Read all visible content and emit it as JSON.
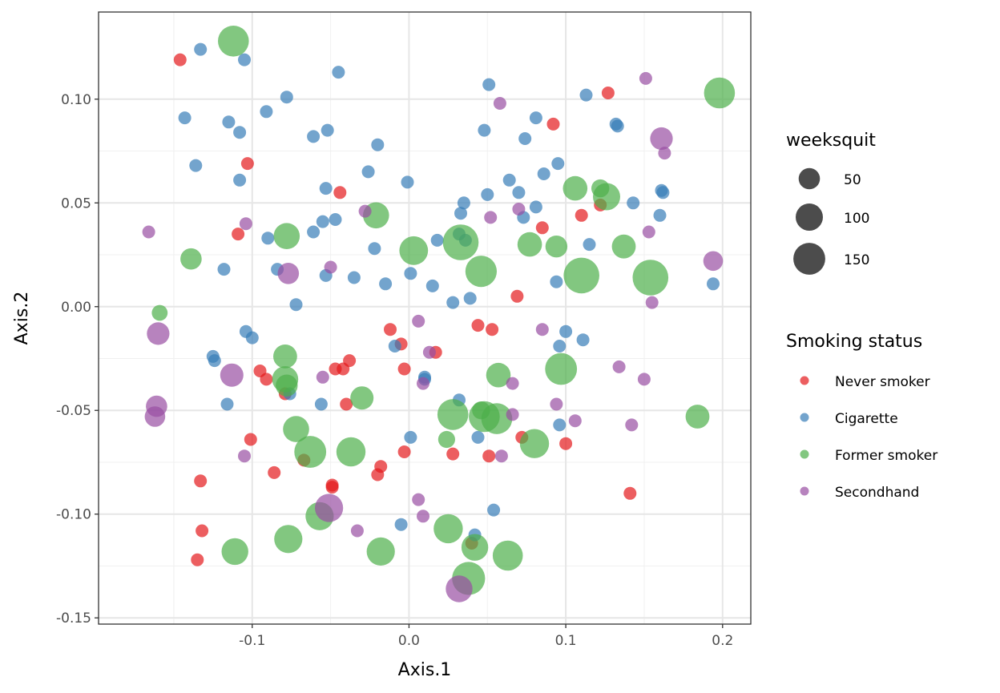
{
  "chart_data": {
    "type": "scatter",
    "title": "",
    "xlabel": "Axis.1",
    "ylabel": "Axis.2",
    "xlim": [
      -0.198,
      0.218
    ],
    "ylim": [
      -0.153,
      0.142
    ],
    "x_ticks": [
      {
        "value": -0.1,
        "label": "-0.1"
      },
      {
        "value": 0.0,
        "label": "0.0"
      },
      {
        "value": 0.1,
        "label": "0.1"
      },
      {
        "value": 0.2,
        "label": "0.2"
      }
    ],
    "y_ticks": [
      {
        "value": 0.1,
        "label": "0.10"
      },
      {
        "value": 0.05,
        "label": "0.05"
      },
      {
        "value": 0.0,
        "label": "0.00"
      },
      {
        "value": -0.05,
        "label": "-0.05"
      },
      {
        "value": -0.1,
        "label": "-0.10"
      },
      {
        "value": -0.15,
        "label": "-0.15"
      }
    ],
    "grid": true,
    "legend_position": "right",
    "size_legend": {
      "title": "weeksquit",
      "items": [
        {
          "value": 50,
          "label": "50"
        },
        {
          "value": 100,
          "label": "100"
        },
        {
          "value": 150,
          "label": "150"
        }
      ]
    },
    "color_legend": {
      "title": "Smoking status",
      "items": [
        {
          "key": "never",
          "label": "Never smoker",
          "color": "#e41a1c"
        },
        {
          "key": "cig",
          "label": "Cigarette",
          "color": "#377eb8"
        },
        {
          "key": "former",
          "label": "Former smoker",
          "color": "#4daf4a"
        },
        {
          "key": "second",
          "label": "Secondhand",
          "color": "#984ea3"
        }
      ]
    },
    "series": [
      {
        "name": "Never smoker",
        "points": [
          [
            -0.146,
            0.119,
            0
          ],
          [
            -0.103,
            0.069,
            0
          ],
          [
            -0.109,
            0.035,
            0
          ],
          [
            -0.044,
            0.055,
            0
          ],
          [
            0.127,
            0.103,
            0
          ],
          [
            0.092,
            0.088,
            0
          ],
          [
            0.11,
            0.044,
            0
          ],
          [
            0.122,
            0.049,
            0
          ],
          [
            0.085,
            0.038,
            0
          ],
          [
            0.069,
            0.005,
            0
          ],
          [
            -0.012,
            -0.011,
            0
          ],
          [
            -0.005,
            -0.018,
            0
          ],
          [
            0.017,
            -0.022,
            0
          ],
          [
            0.044,
            -0.009,
            0
          ],
          [
            0.053,
            -0.011,
            0
          ],
          [
            -0.095,
            -0.031,
            0
          ],
          [
            -0.091,
            -0.035,
            0
          ],
          [
            -0.047,
            -0.03,
            0
          ],
          [
            -0.042,
            -0.03,
            0
          ],
          [
            -0.038,
            -0.026,
            0
          ],
          [
            -0.079,
            -0.042,
            0
          ],
          [
            -0.04,
            -0.047,
            0
          ],
          [
            -0.003,
            -0.03,
            0
          ],
          [
            -0.101,
            -0.064,
            0
          ],
          [
            -0.086,
            -0.08,
            0
          ],
          [
            -0.067,
            -0.074,
            0
          ],
          [
            -0.049,
            -0.087,
            0
          ],
          [
            -0.049,
            -0.086,
            0
          ],
          [
            -0.018,
            -0.077,
            0
          ],
          [
            -0.02,
            -0.081,
            0
          ],
          [
            -0.003,
            -0.07,
            0
          ],
          [
            -0.133,
            -0.084,
            0
          ],
          [
            -0.132,
            -0.108,
            0
          ],
          [
            -0.135,
            -0.122,
            0
          ],
          [
            0.028,
            -0.071,
            0
          ],
          [
            0.051,
            -0.072,
            0
          ],
          [
            0.072,
            -0.063,
            0
          ],
          [
            0.1,
            -0.066,
            0
          ],
          [
            0.141,
            -0.09,
            0
          ],
          [
            0.04,
            -0.114,
            0
          ]
        ]
      },
      {
        "name": "Cigarette",
        "points": [
          [
            -0.133,
            0.124,
            0
          ],
          [
            -0.105,
            0.119,
            0
          ],
          [
            -0.045,
            0.113,
            0
          ],
          [
            -0.143,
            0.091,
            0
          ],
          [
            -0.115,
            0.089,
            0
          ],
          [
            -0.108,
            0.084,
            0
          ],
          [
            -0.091,
            0.094,
            0
          ],
          [
            -0.078,
            0.101,
            0
          ],
          [
            -0.052,
            0.085,
            0
          ],
          [
            -0.061,
            0.082,
            0
          ],
          [
            -0.02,
            0.078,
            0
          ],
          [
            -0.136,
            0.068,
            0
          ],
          [
            -0.108,
            0.061,
            0
          ],
          [
            -0.026,
            0.065,
            0
          ],
          [
            -0.001,
            0.06,
            0
          ],
          [
            -0.053,
            0.057,
            0
          ],
          [
            -0.055,
            0.041,
            0
          ],
          [
            -0.047,
            0.042,
            0
          ],
          [
            -0.061,
            0.036,
            0
          ],
          [
            -0.09,
            0.033,
            0
          ],
          [
            -0.084,
            0.018,
            0
          ],
          [
            -0.053,
            0.015,
            0
          ],
          [
            -0.035,
            0.014,
            0
          ],
          [
            -0.022,
            0.028,
            0
          ],
          [
            -0.015,
            0.011,
            0
          ],
          [
            0.001,
            0.016,
            0
          ],
          [
            0.018,
            0.032,
            0
          ],
          [
            0.015,
            0.01,
            0
          ],
          [
            -0.118,
            0.018,
            0
          ],
          [
            -0.072,
            0.001,
            0
          ],
          [
            0.051,
            0.107,
            0
          ],
          [
            0.048,
            0.085,
            0
          ],
          [
            0.081,
            0.091,
            0
          ],
          [
            0.074,
            0.081,
            0
          ],
          [
            0.113,
            0.102,
            0
          ],
          [
            0.132,
            0.088,
            0
          ],
          [
            0.133,
            0.087,
            0
          ],
          [
            0.095,
            0.069,
            0
          ],
          [
            0.086,
            0.064,
            0
          ],
          [
            0.064,
            0.061,
            0
          ],
          [
            0.05,
            0.054,
            0
          ],
          [
            0.07,
            0.055,
            0
          ],
          [
            0.035,
            0.05,
            0
          ],
          [
            0.033,
            0.045,
            0
          ],
          [
            0.073,
            0.043,
            0
          ],
          [
            0.081,
            0.048,
            0
          ],
          [
            0.032,
            0.035,
            0
          ],
          [
            0.036,
            0.032,
            0
          ],
          [
            0.115,
            0.03,
            0
          ],
          [
            0.143,
            0.05,
            0
          ],
          [
            0.161,
            0.056,
            0
          ],
          [
            0.162,
            0.055,
            0
          ],
          [
            0.16,
            0.044,
            0
          ],
          [
            0.194,
            0.011,
            0
          ],
          [
            0.094,
            0.012,
            0
          ],
          [
            0.028,
            0.002,
            0
          ],
          [
            0.039,
            0.004,
            0
          ],
          [
            -0.104,
            -0.012,
            0
          ],
          [
            -0.1,
            -0.015,
            0
          ],
          [
            -0.125,
            -0.024,
            0
          ],
          [
            -0.124,
            -0.026,
            0
          ],
          [
            -0.116,
            -0.047,
            0
          ],
          [
            -0.076,
            -0.042,
            0
          ],
          [
            -0.056,
            -0.047,
            0
          ],
          [
            -0.009,
            -0.019,
            0
          ],
          [
            0.01,
            -0.034,
            0
          ],
          [
            0.01,
            -0.035,
            0
          ],
          [
            0.032,
            -0.045,
            0
          ],
          [
            0.1,
            -0.012,
            0
          ],
          [
            0.111,
            -0.016,
            0
          ],
          [
            0.096,
            -0.019,
            0
          ],
          [
            0.096,
            -0.057,
            0
          ],
          [
            0.044,
            -0.063,
            0
          ],
          [
            0.001,
            -0.063,
            0
          ],
          [
            0.054,
            -0.098,
            0
          ],
          [
            -0.005,
            -0.105,
            0
          ],
          [
            0.042,
            -0.11,
            0
          ]
        ]
      },
      {
        "name": "Former smoker",
        "points": [
          [
            -0.112,
            0.128,
            140
          ],
          [
            0.198,
            0.103,
            140
          ],
          [
            -0.021,
            0.044,
            90
          ],
          [
            -0.078,
            0.034,
            90
          ],
          [
            0.003,
            0.027,
            115
          ],
          [
            0.033,
            0.031,
            200
          ],
          [
            0.046,
            0.017,
            145
          ],
          [
            0.077,
            0.03,
            75
          ],
          [
            0.094,
            0.029,
            55
          ],
          [
            0.106,
            0.057,
            75
          ],
          [
            0.126,
            0.053,
            100
          ],
          [
            0.122,
            0.057,
            30
          ],
          [
            0.137,
            0.029,
            70
          ],
          [
            0.11,
            0.015,
            200
          ],
          [
            0.154,
            0.014,
            200
          ],
          [
            -0.139,
            0.023,
            50
          ],
          [
            -0.159,
            -0.003,
            20
          ],
          [
            -0.079,
            -0.024,
            70
          ],
          [
            -0.078,
            -0.038,
            55
          ],
          [
            -0.079,
            -0.035,
            90
          ],
          [
            -0.072,
            -0.059,
            90
          ],
          [
            -0.03,
            -0.044,
            65
          ],
          [
            -0.063,
            -0.07,
            150
          ],
          [
            -0.037,
            -0.07,
            120
          ],
          [
            0.028,
            -0.052,
            140
          ],
          [
            0.048,
            -0.053,
            140
          ],
          [
            0.056,
            -0.054,
            140
          ],
          [
            0.057,
            -0.033,
            75
          ],
          [
            0.097,
            -0.03,
            150
          ],
          [
            0.08,
            -0.066,
            120
          ],
          [
            0.046,
            -0.05,
            30
          ],
          [
            0.184,
            -0.053,
            70
          ],
          [
            0.024,
            -0.064,
            25
          ],
          [
            -0.057,
            -0.101,
            110
          ],
          [
            -0.077,
            -0.112,
            110
          ],
          [
            -0.111,
            -0.118,
            95
          ],
          [
            -0.018,
            -0.118,
            110
          ],
          [
            0.025,
            -0.107,
            120
          ],
          [
            0.042,
            -0.116,
            95
          ],
          [
            0.063,
            -0.12,
            130
          ],
          [
            0.038,
            -0.131,
            165
          ]
        ]
      },
      {
        "name": "Secondhand",
        "points": [
          [
            -0.166,
            0.036,
            0
          ],
          [
            -0.104,
            0.04,
            0
          ],
          [
            -0.028,
            0.046,
            0
          ],
          [
            -0.077,
            0.016,
            50
          ],
          [
            -0.05,
            0.019,
            0
          ],
          [
            0.058,
            0.098,
            0
          ],
          [
            0.052,
            0.043,
            0
          ],
          [
            0.07,
            0.047,
            0
          ],
          [
            0.151,
            0.11,
            0
          ],
          [
            0.161,
            0.081,
            60
          ],
          [
            0.163,
            0.074,
            0
          ],
          [
            0.153,
            0.036,
            0
          ],
          [
            0.194,
            0.022,
            40
          ],
          [
            0.155,
            0.002,
            0
          ],
          [
            -0.16,
            -0.013,
            60
          ],
          [
            -0.113,
            -0.033,
            65
          ],
          [
            -0.055,
            -0.034,
            0
          ],
          [
            0.006,
            -0.007,
            0
          ],
          [
            0.013,
            -0.022,
            0
          ],
          [
            0.009,
            -0.037,
            0
          ],
          [
            0.066,
            -0.037,
            0
          ],
          [
            0.085,
            -0.011,
            0
          ],
          [
            0.134,
            -0.029,
            0
          ],
          [
            0.15,
            -0.035,
            0
          ],
          [
            0.094,
            -0.047,
            0
          ],
          [
            0.066,
            -0.052,
            0
          ],
          [
            0.106,
            -0.055,
            0
          ],
          [
            0.142,
            -0.057,
            0
          ],
          [
            -0.161,
            -0.048,
            50
          ],
          [
            -0.162,
            -0.053,
            45
          ],
          [
            -0.105,
            -0.072,
            0
          ],
          [
            -0.051,
            -0.097,
            110
          ],
          [
            0.006,
            -0.093,
            0
          ],
          [
            0.009,
            -0.101,
            0
          ],
          [
            -0.033,
            -0.108,
            0
          ],
          [
            0.059,
            -0.072,
            0
          ],
          [
            0.032,
            -0.136,
            95
          ]
        ]
      }
    ]
  }
}
